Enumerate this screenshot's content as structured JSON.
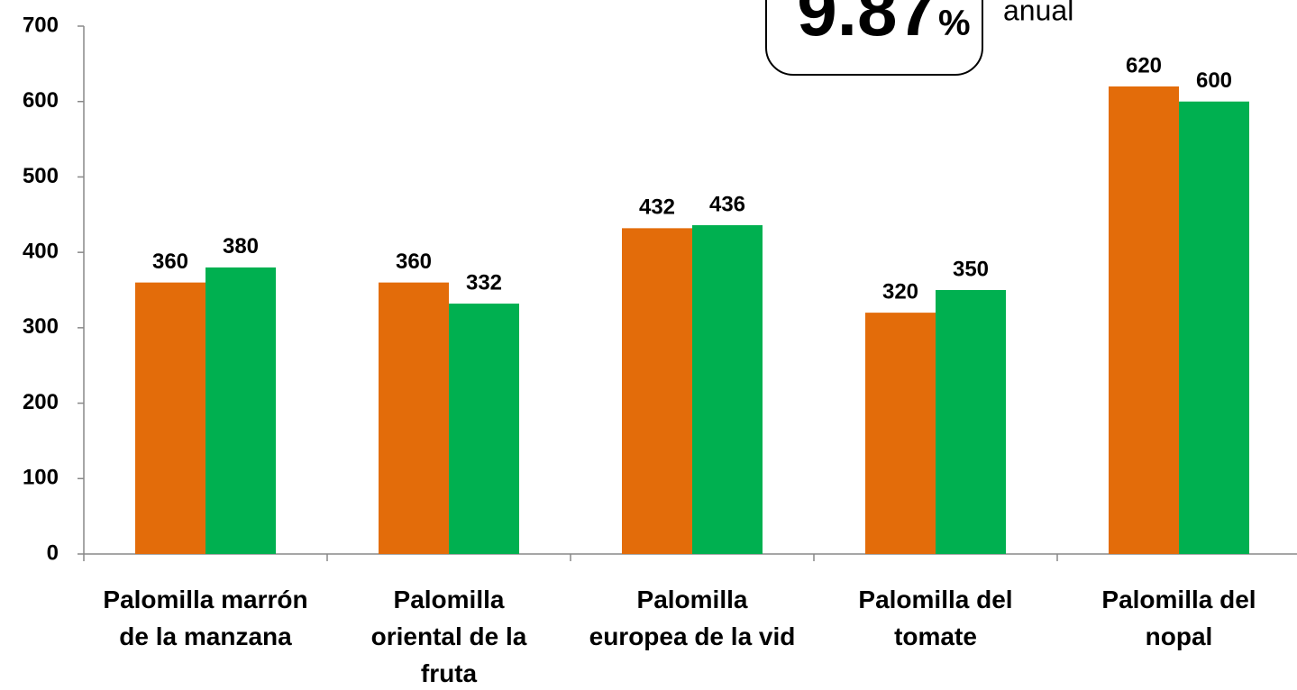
{
  "chart_data": {
    "type": "bar",
    "categories": [
      "Palomilla marrón\nde la manzana",
      "Palomilla\noriental de la\nfruta",
      "Palomilla\neuropea de la vid",
      "Palomilla del\ntomate",
      "Palomilla del\nnopal"
    ],
    "series": [
      {
        "color": "#e36c0a",
        "values": [
          360,
          360,
          432,
          320,
          620
        ]
      },
      {
        "color": "#00b050",
        "values": [
          380,
          332,
          436,
          350,
          600
        ]
      }
    ],
    "ylim": [
      0,
      700
    ],
    "yticks": [
      0,
      100,
      200,
      300,
      400,
      500,
      600,
      700
    ],
    "grid": false,
    "annotation_value": "9.87",
    "annotation_unit": "%",
    "annotation_note": "anual"
  }
}
